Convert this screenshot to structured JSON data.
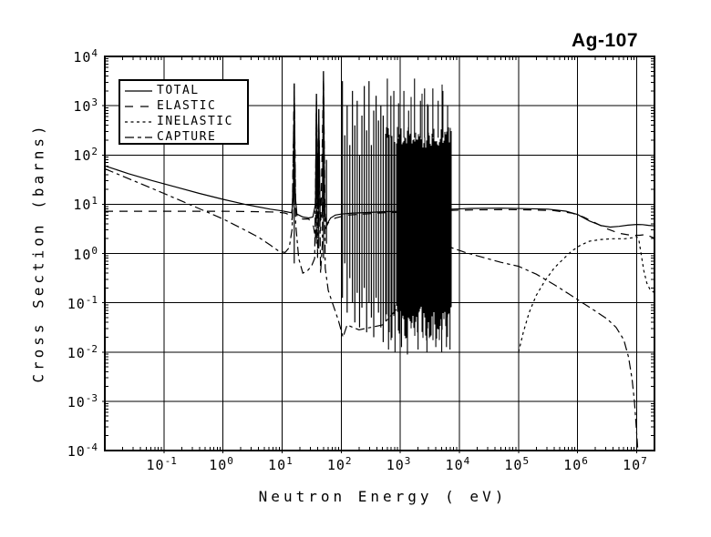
{
  "title": "Ag-107",
  "colors": {
    "foreground": "#000000",
    "background": "#ffffff"
  },
  "axes": {
    "x": {
      "label": "Neutron Energy ( eV)",
      "tick_exponents": [
        -1,
        0,
        1,
        2,
        3,
        4,
        5,
        6,
        7
      ]
    },
    "y": {
      "label": "Cross Section (barns)",
      "tick_exponents": [
        4,
        3,
        2,
        1,
        0,
        -1,
        -2,
        -3,
        -4
      ]
    }
  },
  "legend": {
    "items": [
      {
        "label": "TOTAL",
        "dash": "solid"
      },
      {
        "label": "ELASTIC",
        "dash": "long-dash"
      },
      {
        "label": "INELASTIC",
        "dash": "short-dash"
      },
      {
        "label": "CAPTURE",
        "dash": "dash-dot"
      }
    ]
  },
  "chart_data": {
    "type": "line",
    "title": "Ag-107",
    "xlabel": "Neutron Energy ( eV)",
    "ylabel": "Cross Section (barns)",
    "x_scale": "log",
    "y_scale": "log",
    "xlim_log10": [
      -2,
      7.3
    ],
    "ylim_log10": [
      -4,
      4
    ],
    "grid": true,
    "legend_position": "upper-left",
    "series": [
      {
        "name": "TOTAL",
        "dash": "solid",
        "points_log10": [
          [
            -2,
            1.78
          ],
          [
            -1.6,
            1.62
          ],
          [
            -1.2,
            1.48
          ],
          [
            -0.8,
            1.35
          ],
          [
            -0.4,
            1.22
          ],
          [
            0,
            1.1
          ],
          [
            0.4,
            0.99
          ],
          [
            0.8,
            0.9
          ],
          [
            1.0,
            0.865
          ],
          [
            1.1,
            0.84
          ],
          [
            1.16,
            0.825
          ],
          [
            1.19,
            1.1
          ],
          [
            1.205,
            3.45
          ],
          [
            1.22,
            1.2
          ],
          [
            1.25,
            0.8
          ],
          [
            1.35,
            0.74
          ],
          [
            1.45,
            0.72
          ],
          [
            1.52,
            0.74
          ],
          [
            1.565,
            1.0
          ],
          [
            1.58,
            3.24
          ],
          [
            1.6,
            0.9
          ],
          [
            1.62,
            2.93
          ],
          [
            1.645,
            0.7
          ],
          [
            1.68,
            0.8
          ],
          [
            1.7,
            3.7
          ],
          [
            1.72,
            0.75
          ],
          [
            1.76,
            0.6
          ],
          [
            1.82,
            0.72
          ],
          [
            1.9,
            0.78
          ],
          [
            2.0,
            0.8
          ],
          [
            2.2,
            0.82
          ],
          [
            2.4,
            0.83
          ],
          [
            2.6,
            0.84
          ],
          [
            2.75,
            0.85
          ],
          [
            3.3,
            0.86
          ],
          [
            3.86,
            0.9
          ],
          [
            4.2,
            0.915
          ],
          [
            4.7,
            0.92
          ],
          [
            5.1,
            0.91
          ],
          [
            5.5,
            0.9
          ],
          [
            5.8,
            0.86
          ],
          [
            6.0,
            0.79
          ],
          [
            6.2,
            0.66
          ],
          [
            6.4,
            0.565
          ],
          [
            6.55,
            0.535
          ],
          [
            6.7,
            0.55
          ],
          [
            6.85,
            0.575
          ],
          [
            7.0,
            0.59
          ],
          [
            7.1,
            0.585
          ],
          [
            7.2,
            0.57
          ],
          [
            7.3,
            0.56
          ]
        ]
      },
      {
        "name": "ELASTIC",
        "dash": "long-dash",
        "points_log10": [
          [
            -2,
            0.857
          ],
          [
            -1,
            0.857
          ],
          [
            0,
            0.857
          ],
          [
            0.5,
            0.85
          ],
          [
            0.9,
            0.84
          ],
          [
            1.05,
            0.82
          ],
          [
            1.13,
            0.78
          ],
          [
            1.17,
            0.68
          ],
          [
            1.205,
            3.3
          ],
          [
            1.23,
            0.9
          ],
          [
            1.26,
            0.72
          ],
          [
            1.35,
            0.7
          ],
          [
            1.45,
            0.7
          ],
          [
            1.53,
            0.55
          ],
          [
            1.565,
            0.3
          ],
          [
            1.58,
            3.1
          ],
          [
            1.61,
            0.6
          ],
          [
            1.62,
            2.8
          ],
          [
            1.65,
            0.45
          ],
          [
            1.7,
            3.55
          ],
          [
            1.73,
            0.5
          ],
          [
            1.78,
            0.62
          ],
          [
            1.9,
            0.72
          ],
          [
            2.1,
            0.78
          ],
          [
            2.5,
            0.81
          ],
          [
            2.75,
            0.83
          ],
          [
            3.3,
            0.84
          ],
          [
            3.86,
            0.875
          ],
          [
            4.3,
            0.885
          ],
          [
            4.8,
            0.89
          ],
          [
            5.2,
            0.885
          ],
          [
            5.6,
            0.87
          ],
          [
            5.9,
            0.82
          ],
          [
            6.1,
            0.74
          ],
          [
            6.3,
            0.62
          ],
          [
            6.5,
            0.5
          ],
          [
            6.7,
            0.41
          ],
          [
            6.9,
            0.37
          ],
          [
            7.05,
            0.37
          ],
          [
            7.15,
            0.385
          ],
          [
            7.3,
            0.31
          ]
        ]
      },
      {
        "name": "INELASTIC",
        "dash": "short-dash",
        "points_log10": [
          [
            5.0,
            -2.0
          ],
          [
            5.08,
            -1.6
          ],
          [
            5.18,
            -1.2
          ],
          [
            5.3,
            -0.85
          ],
          [
            5.45,
            -0.55
          ],
          [
            5.6,
            -0.3
          ],
          [
            5.75,
            -0.12
          ],
          [
            5.9,
            0.05
          ],
          [
            6.05,
            0.17
          ],
          [
            6.2,
            0.25
          ],
          [
            6.4,
            0.285
          ],
          [
            6.6,
            0.3
          ],
          [
            6.8,
            0.3
          ],
          [
            6.93,
            0.32
          ],
          [
            7.0,
            0.345
          ],
          [
            7.04,
            0.25
          ],
          [
            7.08,
            -0.05
          ],
          [
            7.12,
            -0.35
          ],
          [
            7.17,
            -0.6
          ],
          [
            7.22,
            -0.72
          ],
          [
            7.3,
            -0.8
          ]
        ]
      },
      {
        "name": "CAPTURE",
        "dash": "dash-dot",
        "points_log10": [
          [
            -2,
            1.72
          ],
          [
            -1.5,
            1.47
          ],
          [
            -1,
            1.22
          ],
          [
            -0.5,
            0.96
          ],
          [
            0,
            0.7
          ],
          [
            0.3,
            0.52
          ],
          [
            0.6,
            0.33
          ],
          [
            0.8,
            0.17
          ],
          [
            0.95,
            0.04
          ],
          [
            1.05,
            0.02
          ],
          [
            1.12,
            0.12
          ],
          [
            1.17,
            0.5
          ],
          [
            1.205,
            3.4
          ],
          [
            1.23,
            0.6
          ],
          [
            1.28,
            -0.1
          ],
          [
            1.35,
            -0.4
          ],
          [
            1.43,
            -0.35
          ],
          [
            1.5,
            -0.25
          ],
          [
            1.55,
            -0.1
          ],
          [
            1.58,
            2.9
          ],
          [
            1.6,
            -0.1
          ],
          [
            1.62,
            2.6
          ],
          [
            1.65,
            -0.4
          ],
          [
            1.68,
            0.2
          ],
          [
            1.7,
            3.3
          ],
          [
            1.73,
            -0.3
          ],
          [
            1.78,
            -0.75
          ],
          [
            1.85,
            -1.0
          ],
          [
            1.95,
            -1.35
          ],
          [
            2.03,
            -1.7
          ],
          [
            2.1,
            -1.45
          ],
          [
            2.3,
            -1.55
          ],
          [
            2.5,
            -1.5
          ],
          [
            2.7,
            -1.45
          ],
          [
            3.86,
            0.12
          ],
          [
            4.1,
            0.02
          ],
          [
            4.4,
            -0.08
          ],
          [
            4.7,
            -0.18
          ],
          [
            5.0,
            -0.26
          ],
          [
            5.3,
            -0.42
          ],
          [
            5.6,
            -0.63
          ],
          [
            5.85,
            -0.82
          ],
          [
            6.08,
            -1.0
          ],
          [
            6.3,
            -1.17
          ],
          [
            6.5,
            -1.33
          ],
          [
            6.65,
            -1.5
          ],
          [
            6.78,
            -1.75
          ],
          [
            6.86,
            -2.1
          ],
          [
            6.92,
            -2.55
          ],
          [
            6.96,
            -3.0
          ],
          [
            6.99,
            -3.5
          ],
          [
            7.02,
            -4.0
          ]
        ]
      }
    ],
    "resonance_spikes": [
      [
        1.205,
        3.45,
        -0.2
      ],
      [
        1.58,
        3.24,
        0.2
      ],
      [
        1.62,
        2.93,
        0.1
      ],
      [
        1.7,
        3.7,
        -0.1
      ],
      [
        1.75,
        1.9,
        0.2
      ],
      [
        2.02,
        3.5,
        -0.9
      ],
      [
        2.06,
        2.4,
        -0.2
      ],
      [
        2.1,
        3.0,
        -1.2
      ],
      [
        2.145,
        2.2,
        -0.5
      ],
      [
        2.19,
        3.3,
        -1.0
      ],
      [
        2.23,
        2.6,
        -1.4
      ],
      [
        2.27,
        3.1,
        -0.8
      ],
      [
        2.31,
        2.0,
        -1.5
      ],
      [
        2.35,
        2.8,
        -1.1
      ],
      [
        2.39,
        3.4,
        -0.7
      ],
      [
        2.43,
        2.5,
        -1.6
      ],
      [
        2.47,
        3.5,
        -1.0
      ],
      [
        2.51,
        2.2,
        -1.3
      ],
      [
        2.55,
        2.9,
        -1.7
      ],
      [
        2.59,
        3.2,
        -0.9
      ],
      [
        2.63,
        2.7,
        -1.2
      ],
      [
        2.67,
        3.0,
        -1.5
      ],
      [
        2.71,
        2.8,
        -1.8
      ]
    ],
    "unresolved_band": {
      "x_log_range": [
        2.75,
        3.86
      ],
      "top_log_base": 2.35,
      "top_log_jitter": 0.22,
      "bottom_log_base": -1.05,
      "bottom_log_jitter": 0.75,
      "seed": 13,
      "tall_spikes": [
        [
          2.78,
          3.55
        ],
        [
          2.84,
          3.2
        ],
        [
          2.89,
          3.3
        ],
        [
          2.97,
          3.05
        ],
        [
          3.06,
          3.3
        ],
        [
          3.14,
          2.9
        ],
        [
          3.24,
          3.55
        ],
        [
          3.34,
          3.1
        ],
        [
          3.41,
          3.35
        ],
        [
          3.47,
          3.0
        ],
        [
          3.55,
          3.35
        ],
        [
          3.64,
          3.1
        ],
        [
          3.72,
          3.3
        ],
        [
          3.8,
          3.0
        ]
      ],
      "deep_spikes": [
        [
          2.8,
          -1.95
        ],
        [
          2.91,
          -2.0
        ],
        [
          3.02,
          -1.9
        ],
        [
          3.12,
          -2.05
        ],
        [
          3.3,
          -1.95
        ],
        [
          3.45,
          -2.0
        ],
        [
          3.6,
          -1.9
        ],
        [
          3.7,
          -2.0
        ],
        [
          3.78,
          -1.9
        ],
        [
          3.84,
          -1.95
        ]
      ]
    }
  }
}
